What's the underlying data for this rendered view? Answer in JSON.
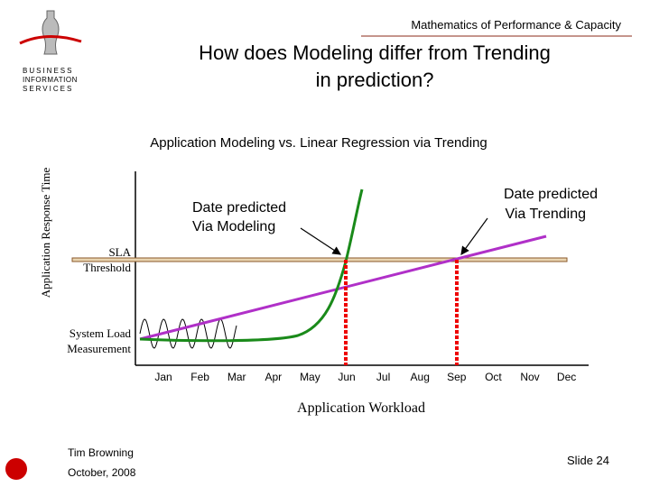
{
  "header": {
    "text": "Mathematics of Performance & Capacity"
  },
  "title": [
    "How does Modeling differ from Trending",
    "in prediction?"
  ],
  "logo": {
    "lines": [
      "BUSINESS",
      "INFORMATION",
      "SERVICES"
    ]
  },
  "diagram": {
    "title": "Application Modeling vs. Linear Regression via Trending",
    "y_label": "Application Response Time",
    "x_label": "Application Workload",
    "sla_label": [
      "SLA",
      "Threshold"
    ],
    "load_label": [
      "System Load",
      "Measurement"
    ],
    "modeling_label": [
      "Date predicted",
      "Via Modeling"
    ],
    "trending_label": [
      "Date predicted",
      "Via Trending"
    ],
    "months": [
      "Jan",
      "Feb",
      "Mar",
      "Apr",
      "May",
      "Jun",
      "Jul",
      "Aug",
      "Sep",
      "Oct",
      "Nov",
      "Dec"
    ]
  },
  "footer": {
    "author": "Tim Browning",
    "date": "October, 2008",
    "slide": "Slide 24"
  }
}
